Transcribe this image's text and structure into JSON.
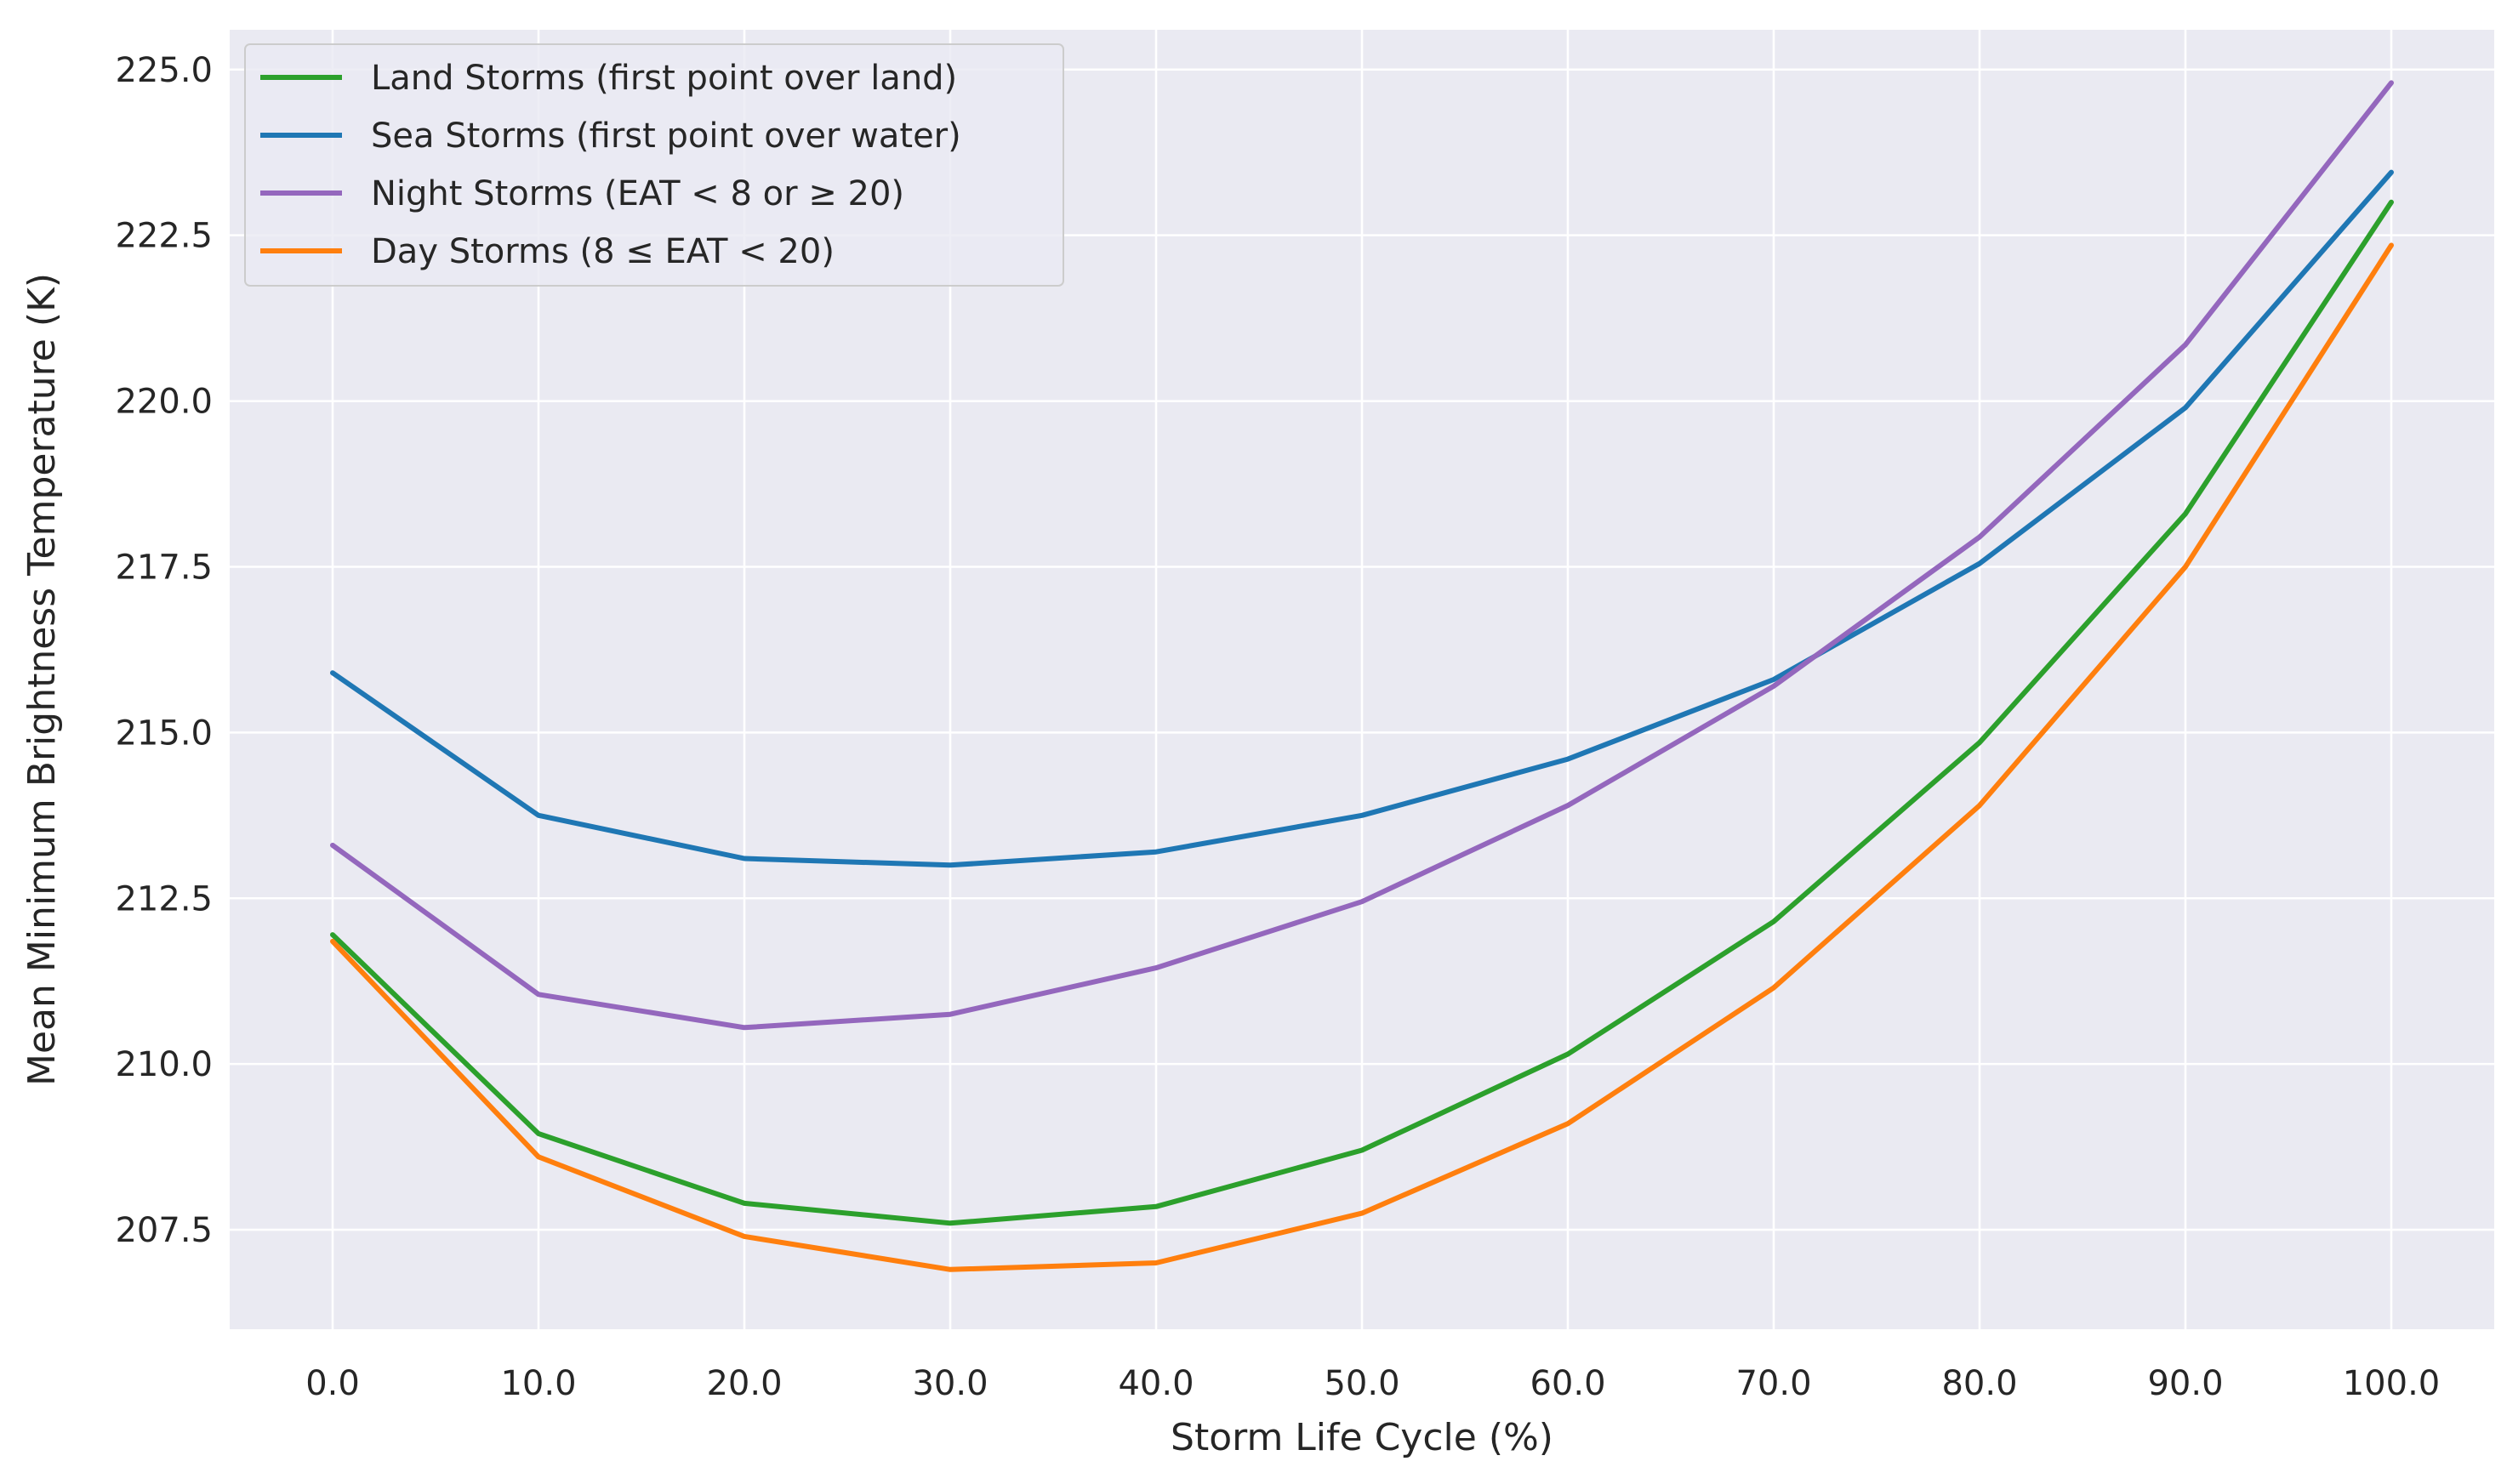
{
  "chart_data": {
    "type": "line",
    "title": "",
    "xlabel": "Storm Life Cycle (%)",
    "ylabel": "Mean Minimum Brightness Temperature (K)",
    "x": [
      0,
      10,
      20,
      30,
      40,
      50,
      60,
      70,
      80,
      90,
      100
    ],
    "xticks": [
      "0.0",
      "10.0",
      "20.0",
      "30.0",
      "40.0",
      "50.0",
      "60.0",
      "70.0",
      "80.0",
      "90.0",
      "100.0"
    ],
    "yticks": [
      "207.5",
      "210.0",
      "212.5",
      "215.0",
      "217.5",
      "220.0",
      "222.5",
      "225.0"
    ],
    "xlim": [
      -5,
      105
    ],
    "ylim": [
      206.0,
      225.6
    ],
    "grid": true,
    "legend_position": "top-left",
    "series": [
      {
        "name": "Land Storms (first point over land)",
        "color": "#2ca02c",
        "values": [
          211.95,
          208.95,
          207.9,
          207.6,
          207.85,
          208.7,
          210.15,
          212.15,
          214.85,
          218.3,
          223.0
        ]
      },
      {
        "name": "Sea Storms (first point over water)",
        "color": "#1f77b4",
        "values": [
          215.9,
          213.75,
          213.1,
          213.0,
          213.2,
          213.75,
          214.6,
          215.8,
          217.55,
          219.9,
          223.45
        ]
      },
      {
        "name": "Night Storms (EAT < 8 or ≥ 20)",
        "color": "#9467bd",
        "values": [
          213.3,
          211.05,
          210.55,
          210.75,
          211.45,
          212.45,
          213.9,
          215.7,
          217.95,
          220.85,
          224.8
        ]
      },
      {
        "name": "Day Storms (8 ≤ EAT < 20)",
        "color": "#ff7f0e",
        "values": [
          211.85,
          208.6,
          207.4,
          206.9,
          207.0,
          207.75,
          209.1,
          211.15,
          213.9,
          217.5,
          222.35
        ]
      }
    ]
  }
}
